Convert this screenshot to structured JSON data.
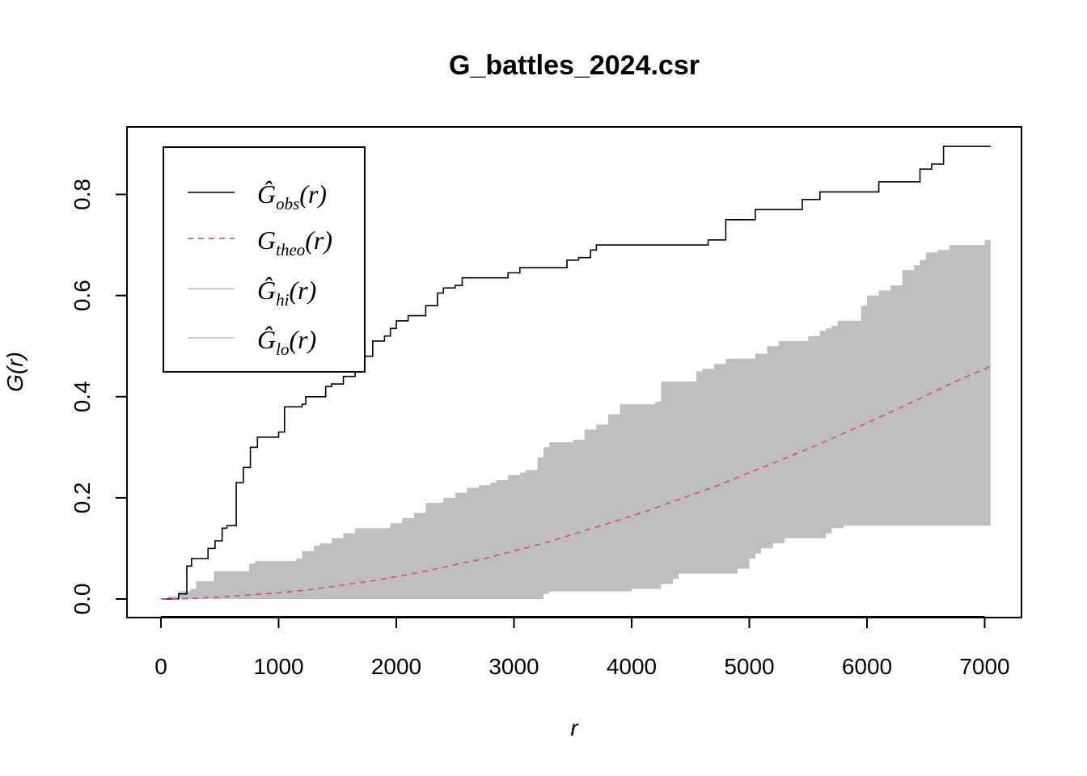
{
  "chart_data": {
    "type": "line",
    "title": "G_battles_2024.csr",
    "xlabel": "r",
    "ylabel": "G(r)",
    "xlim": [
      0,
      7050
    ],
    "ylim": [
      0,
      0.9
    ],
    "x_ticks": [
      0,
      1000,
      2000,
      3000,
      4000,
      5000,
      6000,
      7000
    ],
    "x_tick_labels": [
      "0",
      "1000",
      "2000",
      "3000",
      "4000",
      "5000",
      "6000",
      "7000"
    ],
    "y_ticks": [
      0.0,
      0.2,
      0.4,
      0.6,
      0.8
    ],
    "y_tick_labels": [
      "0.0",
      "0.2",
      "0.4",
      "0.6",
      "0.8"
    ],
    "grid": false,
    "legend_position": "top-left",
    "legend": [
      {
        "base": "Ĝ",
        "sub": "obs",
        "suffix": "(r)",
        "color": "#000000",
        "style": "solid"
      },
      {
        "base": "G",
        "sub": "theo",
        "suffix": "(r)",
        "color": "#DF536B",
        "style": "dashed"
      },
      {
        "base": "Ĝ",
        "sub": "hi",
        "suffix": "(r)",
        "color": "#BEBEBE",
        "style": "solid"
      },
      {
        "base": "Ĝ",
        "sub": "lo",
        "suffix": "(r)",
        "color": "#BEBEBE",
        "style": "solid"
      }
    ],
    "series": [
      {
        "name": "obs",
        "color": "#000000",
        "x": [
          0,
          110,
          150,
          220,
          260,
          320,
          400,
          460,
          520,
          560,
          640,
          700,
          760,
          820,
          1000,
          1050,
          1100,
          1200,
          1230,
          1300,
          1400,
          1450,
          1550,
          1650,
          1700,
          1800,
          1900,
          1950,
          2000,
          2100,
          2250,
          2350,
          2400,
          2500,
          2560,
          2850,
          2950,
          3050,
          3320,
          3450,
          3550,
          3650,
          3700,
          4550,
          4650,
          4800,
          4950,
          5050,
          5350,
          5450,
          5600,
          6000,
          6100,
          6300,
          6450,
          6550,
          6650,
          7050
        ],
        "y": [
          0,
          0,
          0.01,
          0.065,
          0.08,
          0.08,
          0.1,
          0.115,
          0.14,
          0.145,
          0.23,
          0.26,
          0.3,
          0.32,
          0.33,
          0.38,
          0.38,
          0.385,
          0.4,
          0.4,
          0.42,
          0.425,
          0.44,
          0.475,
          0.48,
          0.51,
          0.52,
          0.535,
          0.55,
          0.56,
          0.58,
          0.605,
          0.615,
          0.62,
          0.635,
          0.635,
          0.645,
          0.655,
          0.655,
          0.67,
          0.675,
          0.69,
          0.7,
          0.7,
          0.71,
          0.75,
          0.75,
          0.77,
          0.77,
          0.79,
          0.805,
          0.805,
          0.825,
          0.825,
          0.85,
          0.86,
          0.895,
          0.895
        ]
      },
      {
        "name": "theo",
        "color": "#DF536B",
        "x": [
          0,
          250,
          500,
          750,
          1000,
          1250,
          1500,
          1750,
          2000,
          2250,
          2500,
          2750,
          3000,
          3250,
          3500,
          3750,
          4000,
          4250,
          4500,
          4750,
          5000,
          5250,
          5500,
          5750,
          6000,
          6250,
          6500,
          6750,
          7050
        ],
        "y": [
          0,
          0.001,
          0.004,
          0.008,
          0.012,
          0.018,
          0.026,
          0.034,
          0.044,
          0.055,
          0.068,
          0.08,
          0.095,
          0.11,
          0.128,
          0.146,
          0.164,
          0.184,
          0.205,
          0.226,
          0.25,
          0.273,
          0.297,
          0.322,
          0.348,
          0.375,
          0.402,
          0.43,
          0.46
        ]
      }
    ],
    "envelope": {
      "color": "#BEBEBE",
      "hi": {
        "x": [
          0,
          60,
          150,
          250,
          300,
          350,
          400,
          450,
          550,
          650,
          750,
          800,
          950,
          1050,
          1150,
          1200,
          1300,
          1350,
          1450,
          1550,
          1650,
          1700,
          1800,
          1900,
          1950,
          2050,
          2150,
          2250,
          2300,
          2400,
          2500,
          2600,
          2700,
          2800,
          2850,
          2950,
          3050,
          3100,
          3200,
          3250,
          3300,
          3400,
          3500,
          3550,
          3600,
          3700,
          3800,
          3900,
          4000,
          4200,
          4250,
          4400,
          4450,
          4550,
          4600,
          4700,
          4800,
          5000,
          5050,
          5150,
          5250,
          5350,
          5500,
          5600,
          5650,
          5700,
          5750,
          5850,
          5950,
          6000,
          6100,
          6200,
          6300,
          6400,
          6450,
          6500,
          6600,
          6700,
          6900,
          7000,
          7050
        ],
        "y": [
          0,
          0.005,
          0.015,
          0.02,
          0.035,
          0.035,
          0.035,
          0.055,
          0.055,
          0.055,
          0.07,
          0.075,
          0.075,
          0.075,
          0.08,
          0.095,
          0.105,
          0.11,
          0.12,
          0.13,
          0.14,
          0.14,
          0.14,
          0.14,
          0.15,
          0.16,
          0.17,
          0.19,
          0.19,
          0.2,
          0.21,
          0.22,
          0.225,
          0.23,
          0.235,
          0.245,
          0.25,
          0.255,
          0.28,
          0.3,
          0.31,
          0.31,
          0.315,
          0.315,
          0.335,
          0.345,
          0.365,
          0.385,
          0.385,
          0.39,
          0.43,
          0.43,
          0.43,
          0.45,
          0.455,
          0.465,
          0.475,
          0.475,
          0.485,
          0.5,
          0.51,
          0.51,
          0.52,
          0.53,
          0.535,
          0.54,
          0.55,
          0.55,
          0.58,
          0.6,
          0.61,
          0.62,
          0.65,
          0.66,
          0.67,
          0.685,
          0.69,
          0.7,
          0.7,
          0.71,
          0.73
        ]
      },
      "lo": {
        "x": [
          0,
          3100,
          3200,
          3250,
          3300,
          3700,
          4000,
          4200,
          4250,
          4350,
          4400,
          4800,
          4900,
          5000,
          5050,
          5100,
          5200,
          5300,
          5600,
          5650,
          5700,
          5800,
          6000,
          7050
        ],
        "y": [
          0,
          0,
          0,
          0.01,
          0.015,
          0.015,
          0.02,
          0.02,
          0.03,
          0.04,
          0.05,
          0.05,
          0.06,
          0.08,
          0.09,
          0.1,
          0.11,
          0.12,
          0.12,
          0.13,
          0.14,
          0.145,
          0.145,
          0.145
        ]
      }
    }
  }
}
